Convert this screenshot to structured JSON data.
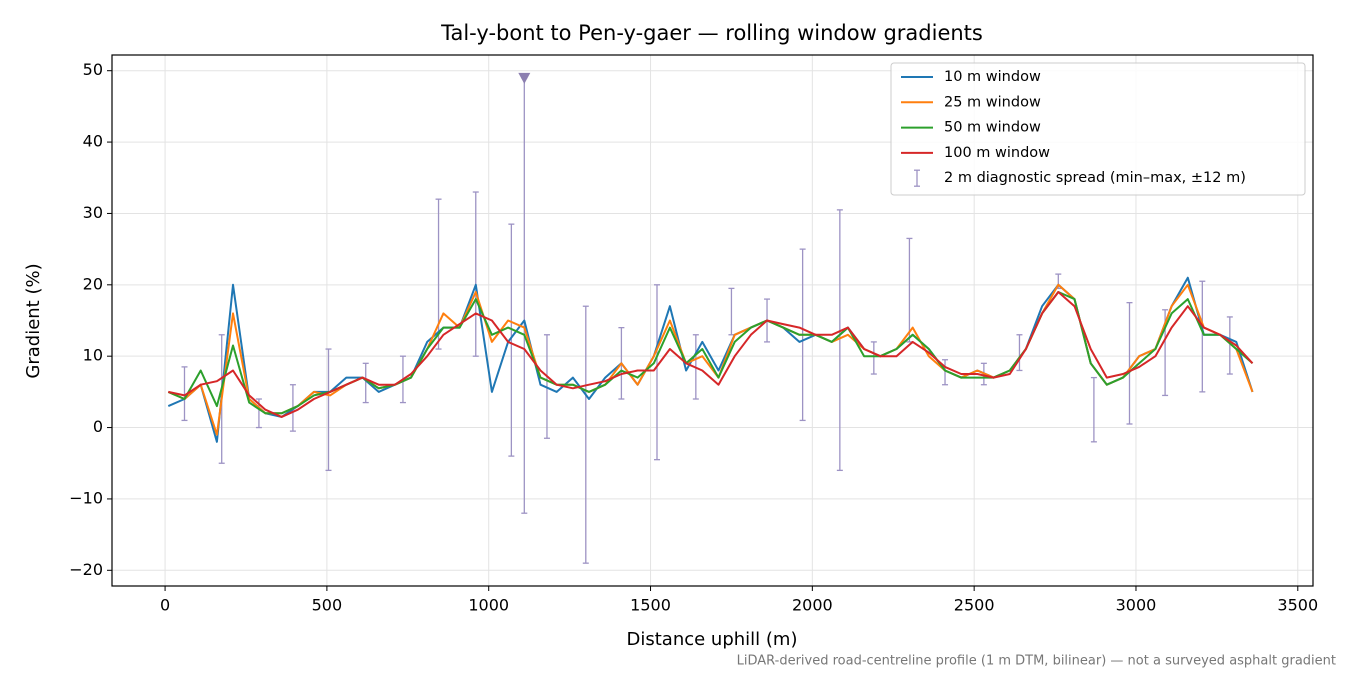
{
  "chart_data": {
    "type": "line",
    "title": "Tal-y-bont to Pen-y-gaer — rolling window gradients",
    "x_label": "Distance uphill (m)",
    "y_label": "Gradient (%)",
    "footnote": "LiDAR-derived road-centreline profile (1 m DTM, bilinear) — not a surveyed asphalt gradient",
    "xlim": [
      -164,
      3547
    ],
    "ylim": [
      -22.2,
      52.2
    ],
    "xticks": [
      0,
      500,
      1000,
      1500,
      2000,
      2500,
      3000,
      3500
    ],
    "yticks": [
      {
        "value": -20,
        "label": "−20"
      },
      {
        "value": -10,
        "label": "−10"
      },
      0,
      10,
      20,
      30,
      40,
      50
    ],
    "grid": true,
    "legend": "upper right",
    "x": [
      10,
      60,
      110,
      160,
      210,
      260,
      310,
      360,
      410,
      460,
      510,
      560,
      610,
      660,
      710,
      760,
      810,
      860,
      910,
      960,
      1010,
      1060,
      1110,
      1160,
      1210,
      1260,
      1310,
      1360,
      1410,
      1460,
      1510,
      1560,
      1610,
      1660,
      1710,
      1760,
      1810,
      1860,
      1910,
      1960,
      2010,
      2060,
      2110,
      2160,
      2210,
      2260,
      2310,
      2360,
      2410,
      2460,
      2510,
      2560,
      2610,
      2660,
      2710,
      2760,
      2810,
      2860,
      2910,
      2960,
      3010,
      3060,
      3110,
      3160,
      3210,
      3260,
      3310,
      3360
    ],
    "series": [
      {
        "name": "10 m window",
        "color": "#1f77b4",
        "values": [
          3,
          4,
          6,
          -2,
          20,
          4,
          2,
          1.5,
          3,
          5,
          5,
          7,
          7,
          5,
          6,
          7,
          12,
          14,
          14,
          20,
          5,
          12,
          15,
          6,
          5,
          7,
          4,
          7,
          9,
          6,
          10,
          17,
          8,
          12,
          8,
          13,
          14,
          15,
          14,
          12,
          13,
          12,
          14,
          11,
          10,
          11,
          13,
          11,
          8,
          7,
          8,
          7,
          8,
          11,
          17,
          20,
          18,
          9,
          6,
          7,
          10,
          11,
          17,
          21,
          13,
          13,
          12,
          5
        ]
      },
      {
        "name": "25 m window",
        "color": "#ff7f0e",
        "values": [
          5,
          4,
          6,
          -1,
          16,
          4,
          2,
          2,
          3,
          5,
          4.5,
          6,
          7,
          5.5,
          6,
          7,
          11,
          16,
          14,
          19,
          12,
          15,
          14,
          7,
          6,
          6,
          5,
          6,
          9,
          6,
          10,
          15,
          9,
          10,
          7,
          13,
          14,
          15,
          14,
          13,
          13,
          12,
          13,
          11,
          10,
          11,
          14,
          10,
          8,
          7,
          8,
          7,
          8,
          11,
          16,
          20,
          18,
          9,
          6,
          7,
          10,
          11,
          17,
          20,
          14,
          13,
          11,
          5
        ]
      },
      {
        "name": "50 m window",
        "color": "#2ca02c",
        "values": [
          5,
          4,
          8,
          3,
          11.5,
          3.5,
          2,
          2,
          3,
          4.5,
          5,
          6,
          7,
          5.5,
          6,
          7,
          11,
          14,
          14,
          18,
          13,
          14,
          13,
          7,
          6,
          6,
          5,
          6,
          8,
          7,
          9,
          14,
          9,
          11,
          7,
          12,
          14,
          15,
          14,
          13,
          13,
          12,
          14,
          10,
          10,
          11,
          13,
          11,
          8,
          7,
          7,
          7,
          8,
          11,
          16,
          19,
          18,
          9,
          6,
          7,
          9,
          11,
          16,
          18,
          13,
          13,
          11,
          9
        ]
      },
      {
        "name": "100 m window",
        "color": "#d62728",
        "values": [
          5,
          4.5,
          6,
          6.5,
          8,
          4.5,
          2.5,
          1.5,
          2.5,
          4,
          5,
          6,
          7,
          6,
          6,
          7.5,
          10,
          13,
          14.5,
          16,
          15,
          12,
          11,
          8,
          6,
          5.5,
          6,
          6.5,
          7.5,
          8,
          8,
          11,
          9,
          8,
          6,
          10,
          13,
          15,
          14.5,
          14,
          13,
          13,
          14,
          11,
          10,
          10,
          12,
          10.5,
          8.5,
          7.5,
          7.5,
          7,
          7.5,
          11,
          16,
          19,
          17,
          11,
          7,
          7.5,
          8.5,
          10,
          14,
          17,
          14,
          13,
          11.5,
          9
        ]
      }
    ],
    "spread": {
      "name": "2 m diagnostic spread (min–max, ±12 m)",
      "color": "#9d93c4",
      "x": [
        60,
        175,
        290,
        395,
        505,
        620,
        735,
        845,
        960,
        1070,
        1110,
        1180,
        1300,
        1410,
        1520,
        1640,
        1750,
        1860,
        1970,
        2085,
        2190,
        2300,
        2410,
        2530,
        2640,
        2760,
        2870,
        2980,
        3090,
        3205,
        3290
      ],
      "low": [
        1,
        -5,
        0,
        -0.5,
        -6,
        3.5,
        3.5,
        11,
        10,
        -4,
        -12,
        -1.5,
        -19,
        4,
        -4.5,
        4,
        13,
        12,
        1,
        -6,
        7.5,
        12,
        6,
        6,
        8,
        19.5,
        -2,
        0.5,
        4.5,
        5,
        7.5
      ],
      "high": [
        8.5,
        13,
        4,
        6,
        11,
        9,
        10,
        32,
        33,
        28.5,
        49,
        13,
        17,
        14,
        20,
        13,
        19.5,
        18,
        25,
        30.5,
        12,
        26.5,
        9.5,
        9,
        13,
        21.5,
        7,
        17.5,
        16.5,
        20.5,
        15.5
      ]
    },
    "marker": {
      "x": 1110,
      "y": 49,
      "color": "#8c7fb0"
    }
  }
}
